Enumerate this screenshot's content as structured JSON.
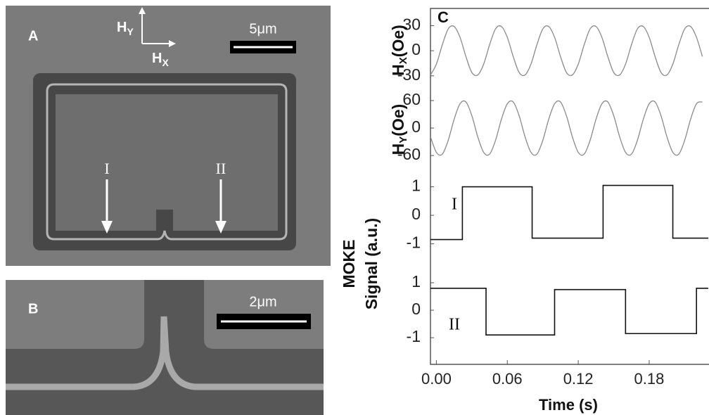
{
  "panel_a": {
    "label": "A",
    "scale_bar": "5μm",
    "hy": {
      "main": "H",
      "sub": "Y"
    },
    "hx": {
      "main": "H",
      "sub": "X"
    },
    "arrow_labels": [
      "I",
      "II"
    ]
  },
  "panel_b": {
    "label": "B",
    "scale_bar": "2μm"
  },
  "panel_c": {
    "label": "C"
  },
  "chart_data": [
    {
      "type": "line",
      "ylabel": {
        "main": "H",
        "sub": "X",
        "unit": "(Oe)"
      },
      "ylim": [
        -47,
        48
      ],
      "yticks": [
        30,
        0,
        -30
      ],
      "color": "#8a8a8a",
      "x": [
        -0.005,
        0,
        0.005,
        0.01,
        0.015,
        0.02,
        0.025,
        0.03,
        0.035,
        0.04,
        0.045,
        0.05,
        0.055,
        0.06,
        0.065,
        0.07,
        0.075,
        0.08,
        0.085,
        0.09,
        0.095,
        0.1,
        0.105,
        0.11,
        0.115,
        0.12,
        0.125,
        0.13,
        0.135,
        0.14,
        0.145,
        0.15,
        0.155,
        0.16,
        0.165,
        0.17,
        0.175,
        0.18,
        0.185,
        0.19,
        0.195,
        0.2,
        0.205,
        0.21,
        0.215,
        0.22,
        0.225
      ],
      "values": [
        -29,
        -16,
        7,
        26,
        29,
        16,
        -7,
        -26,
        -29,
        -16,
        7,
        26,
        29,
        16,
        -7,
        -26,
        -29,
        -16,
        7,
        26,
        29,
        16,
        -7,
        -26,
        -29,
        -16,
        7,
        26,
        29,
        16,
        -7,
        -26,
        -29,
        -16,
        7,
        26,
        29,
        16,
        -7,
        -26,
        -29,
        -16,
        7,
        26,
        29,
        16,
        -7
      ]
    },
    {
      "type": "line",
      "ylabel": {
        "main": "H",
        "sub": "Y",
        "unit": "(Oe)"
      },
      "ylim": [
        -89,
        83
      ],
      "yticks": [
        60,
        0,
        -60
      ],
      "color": "#8a8a8a",
      "x": [
        -0.005,
        0,
        0.005,
        0.01,
        0.015,
        0.02,
        0.025,
        0.03,
        0.035,
        0.04,
        0.045,
        0.05,
        0.055,
        0.06,
        0.065,
        0.07,
        0.075,
        0.08,
        0.085,
        0.09,
        0.095,
        0.1,
        0.105,
        0.11,
        0.115,
        0.12,
        0.125,
        0.13,
        0.135,
        0.14,
        0.145,
        0.15,
        0.155,
        0.16,
        0.165,
        0.17,
        0.175,
        0.18,
        0.185,
        0.19,
        0.195,
        0.2,
        0.205,
        0.21,
        0.215,
        0.22,
        0.225
      ],
      "values": [
        -19,
        -53,
        -57,
        -27,
        19,
        53,
        57,
        27,
        -19,
        -53,
        -57,
        -27,
        19,
        53,
        57,
        27,
        -19,
        -53,
        -57,
        -27,
        19,
        53,
        57,
        27,
        -19,
        -53,
        -57,
        -27,
        19,
        53,
        57,
        27,
        -19,
        -53,
        -57,
        -27,
        19,
        53,
        57,
        27,
        -19,
        -53,
        -57,
        -27,
        19,
        53,
        57
      ]
    },
    {
      "type": "line",
      "ylabel": [
        "MOKE",
        "Signal (a.u.)"
      ],
      "annotation": "I",
      "ylim": [
        -1.7,
        1.63
      ],
      "yticks": [
        1,
        0,
        -1
      ],
      "color": "#111111",
      "x": [
        -0.005,
        0.022,
        0.022,
        0.081,
        0.081,
        0.141,
        0.141,
        0.2,
        0.2,
        0.23
      ],
      "values": [
        -0.85,
        -0.85,
        1.0,
        1.0,
        -0.8,
        -0.8,
        1.05,
        1.05,
        -0.8,
        -0.8
      ]
    },
    {
      "type": "line",
      "annotation": "II",
      "ylim": [
        -1.97,
        1.69
      ],
      "yticks": [
        1,
        0,
        -1
      ],
      "color": "#111111",
      "x": [
        -0.005,
        0.042,
        0.042,
        0.1,
        0.1,
        0.16,
        0.16,
        0.22,
        0.22,
        0.23
      ],
      "values": [
        0.8,
        0.8,
        -0.9,
        -0.9,
        0.75,
        0.75,
        -0.85,
        -0.85,
        0.8,
        0.8
      ],
      "xlim": [
        -0.005,
        0.23
      ],
      "xticks": [
        {
          "value": 0,
          "label": "0.00"
        },
        0.06,
        0.12,
        0.18
      ],
      "xlabel": "Time (s)"
    }
  ]
}
